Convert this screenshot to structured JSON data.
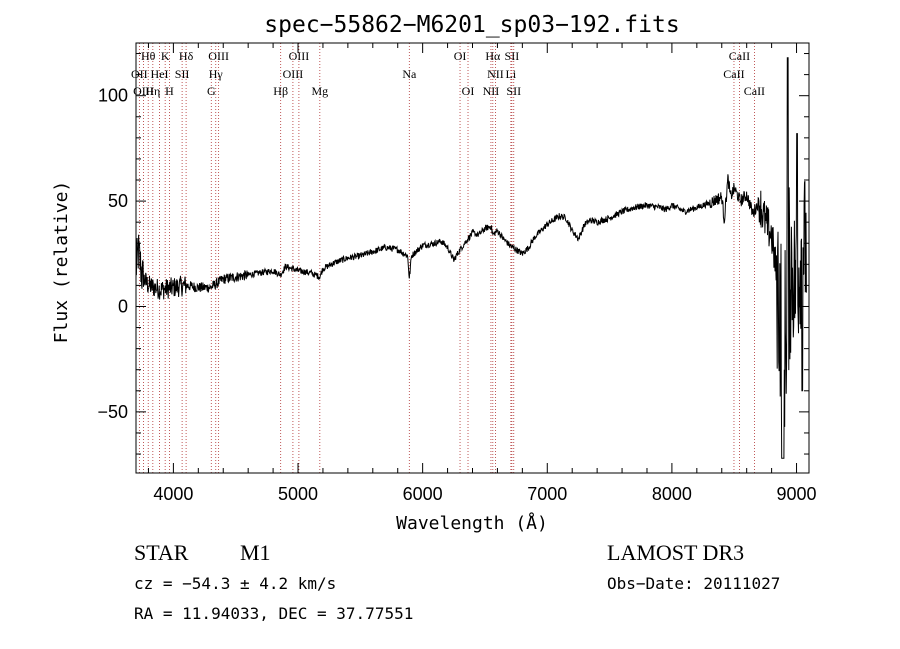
{
  "chart_data": {
    "type": "line",
    "title": "spec−55862−M6201_sp03−192.fits",
    "xlabel": "Wavelength (Å)",
    "ylabel": "Flux (relative)",
    "xlim": [
      3700,
      9100
    ],
    "ylim": [
      -79,
      125
    ],
    "xticks": [
      4000,
      5000,
      6000,
      7000,
      8000,
      9000
    ],
    "yticks": [
      -50,
      0,
      50,
      100
    ],
    "ytick_labels": [
      "−50",
      "0",
      "50",
      "100"
    ],
    "spectral_lines": [
      {
        "label": "Hθ",
        "x": 3798,
        "row": 0
      },
      {
        "label": "K",
        "x": 3934,
        "row": 0
      },
      {
        "label": "Hδ",
        "x": 4102,
        "row": 0
      },
      {
        "label": "OIII",
        "x": 4363,
        "row": 0
      },
      {
        "label": "OIII",
        "x": 5007,
        "row": 0
      },
      {
        "label": "OI",
        "x": 6300,
        "row": 0
      },
      {
        "label": "Hα",
        "x": 6563,
        "row": 0
      },
      {
        "label": "SII",
        "x": 6716,
        "row": 0
      },
      {
        "label": "CaII",
        "x": 8542,
        "row": 0
      },
      {
        "label": "OII",
        "x": 3727,
        "row": 1
      },
      {
        "label": "HeI",
        "x": 3889,
        "row": 1
      },
      {
        "label": "SII",
        "x": 4070,
        "row": 1
      },
      {
        "label": "Hγ",
        "x": 4340,
        "row": 1
      },
      {
        "label": "OIII",
        "x": 4959,
        "row": 1
      },
      {
        "label": "Na",
        "x": 5893,
        "row": 1
      },
      {
        "label": "NII",
        "x": 6584,
        "row": 1
      },
      {
        "label": "Li",
        "x": 6708,
        "row": 1
      },
      {
        "label": "CaII",
        "x": 8498,
        "row": 1
      },
      {
        "label": "OIII",
        "x": 3760,
        "row": 2
      },
      {
        "label": "Hη",
        "x": 3835,
        "row": 2
      },
      {
        "label": "H",
        "x": 3968,
        "row": 2
      },
      {
        "label": "G",
        "x": 4304,
        "row": 2
      },
      {
        "label": "Hβ",
        "x": 4861,
        "row": 2
      },
      {
        "label": "Mg",
        "x": 5175,
        "row": 2
      },
      {
        "label": "OI",
        "x": 6364,
        "row": 2
      },
      {
        "label": "NII",
        "x": 6548,
        "row": 2
      },
      {
        "label": "SII",
        "x": 6731,
        "row": 2
      },
      {
        "label": "CaII",
        "x": 8662,
        "row": 2
      }
    ],
    "spectrum_knots": [
      [
        3700,
        18
      ],
      [
        3720,
        26
      ],
      [
        3750,
        14
      ],
      [
        3800,
        10
      ],
      [
        3900,
        8
      ],
      [
        4000,
        9
      ],
      [
        4100,
        10
      ],
      [
        4200,
        9
      ],
      [
        4300,
        9
      ],
      [
        4400,
        13
      ],
      [
        4500,
        14
      ],
      [
        4600,
        15
      ],
      [
        4700,
        16
      ],
      [
        4800,
        17
      ],
      [
        4860,
        15
      ],
      [
        4900,
        19
      ],
      [
        4950,
        18
      ],
      [
        5000,
        17
      ],
      [
        5100,
        16
      ],
      [
        5175,
        14
      ],
      [
        5200,
        18
      ],
      [
        5300,
        21
      ],
      [
        5400,
        23
      ],
      [
        5500,
        24
      ],
      [
        5600,
        26
      ],
      [
        5700,
        28
      ],
      [
        5800,
        27
      ],
      [
        5880,
        24
      ],
      [
        5893,
        13
      ],
      [
        5910,
        24
      ],
      [
        6000,
        29
      ],
      [
        6100,
        30
      ],
      [
        6150,
        31
      ],
      [
        6200,
        28
      ],
      [
        6250,
        22
      ],
      [
        6300,
        27
      ],
      [
        6350,
        31
      ],
      [
        6400,
        35
      ],
      [
        6450,
        34
      ],
      [
        6500,
        37
      ],
      [
        6550,
        38
      ],
      [
        6563,
        34
      ],
      [
        6600,
        36
      ],
      [
        6650,
        32
      ],
      [
        6700,
        29
      ],
      [
        6750,
        27
      ],
      [
        6800,
        25
      ],
      [
        6850,
        28
      ],
      [
        6900,
        33
      ],
      [
        6950,
        36
      ],
      [
        7000,
        39
      ],
      [
        7050,
        41
      ],
      [
        7100,
        43
      ],
      [
        7150,
        42
      ],
      [
        7200,
        36
      ],
      [
        7250,
        32
      ],
      [
        7300,
        39
      ],
      [
        7350,
        41
      ],
      [
        7400,
        40
      ],
      [
        7500,
        42
      ],
      [
        7600,
        45
      ],
      [
        7700,
        47
      ],
      [
        7800,
        48
      ],
      [
        7900,
        47
      ],
      [
        7950,
        46
      ],
      [
        8000,
        48
      ],
      [
        8100,
        45
      ],
      [
        8200,
        47
      ],
      [
        8300,
        49
      ],
      [
        8400,
        52
      ],
      [
        8420,
        41
      ],
      [
        8450,
        61
      ],
      [
        8470,
        52
      ],
      [
        8500,
        56
      ],
      [
        8550,
        50
      ],
      [
        8600,
        53
      ],
      [
        8650,
        44
      ],
      [
        8700,
        50
      ],
      [
        8750,
        40
      ],
      [
        8800,
        34
      ],
      [
        8850,
        10
      ],
      [
        8900,
        -20
      ],
      [
        8950,
        20
      ],
      [
        9000,
        10
      ],
      [
        9050,
        30
      ],
      [
        9100,
        25
      ]
    ]
  },
  "info": {
    "object_class": "STAR",
    "subclass": "M1",
    "survey": "LAMOST DR3",
    "cz": "cz = −54.3 ± 4.2 km/s",
    "obs_date": "Obs−Date: 20111027",
    "coords": "RA =  11.94033, DEC =  37.77551"
  }
}
